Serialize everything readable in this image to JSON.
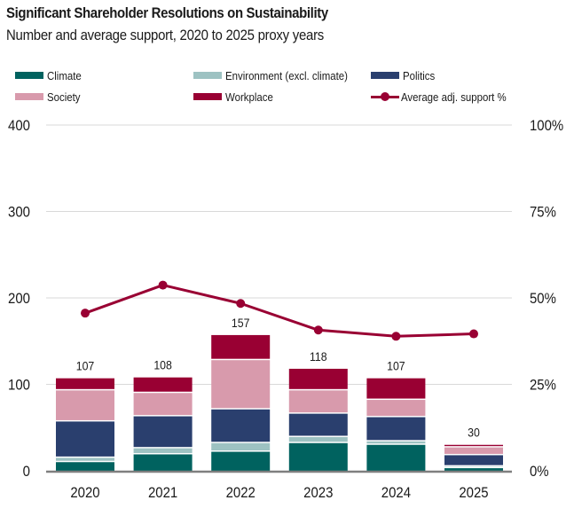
{
  "header": {
    "title": "Significant Shareholder Resolutions on Sustainability",
    "subtitle": "Number and average support, 2020 to 2025 proxy years"
  },
  "colors": {
    "climate": "#00625F",
    "environment": "#9DC2C2",
    "politics": "#2A3F6E",
    "society": "#D89AAC",
    "workplace": "#990033",
    "support_line": "#990033",
    "grid": "#D9D9D9",
    "baseline": "#7F7F7F"
  },
  "legend": [
    {
      "label": "Climate",
      "key": "climate",
      "kind": "bar"
    },
    {
      "label": "Environment (excl. climate)",
      "key": "environment",
      "kind": "bar"
    },
    {
      "label": "Politics",
      "key": "politics",
      "kind": "bar"
    },
    {
      "label": "Society",
      "key": "society",
      "kind": "bar"
    },
    {
      "label": "Workplace",
      "key": "workplace",
      "kind": "bar"
    },
    {
      "label": "Average adj. support %",
      "key": "support_line",
      "kind": "line"
    }
  ],
  "chart_data": {
    "type": "bar",
    "stacked": true,
    "title": "Significant Shareholder Resolutions on Sustainability",
    "subtitle": "Number and average support, 2020 to 2025 proxy years",
    "xlabel": "",
    "ylabel": "",
    "categories": [
      "2020",
      "2021",
      "2022",
      "2023",
      "2024",
      "2025"
    ],
    "series": [
      {
        "name": "Climate",
        "key": "climate",
        "values": [
          10,
          19,
          22,
          32,
          30,
          3
        ]
      },
      {
        "name": "Environment (excl. climate)",
        "key": "environment",
        "values": [
          5,
          7,
          10,
          7,
          4,
          2
        ]
      },
      {
        "name": "Politics",
        "key": "politics",
        "values": [
          42,
          37,
          39,
          27,
          28,
          13
        ]
      },
      {
        "name": "Society",
        "key": "society",
        "values": [
          36,
          27,
          57,
          27,
          20,
          9
        ]
      },
      {
        "name": "Workplace",
        "key": "workplace",
        "values": [
          14,
          18,
          29,
          25,
          25,
          3
        ]
      }
    ],
    "totals": [
      107,
      108,
      157,
      118,
      107,
      30
    ],
    "total_labels": [
      "107",
      "108",
      "157",
      "118",
      "107",
      "30"
    ],
    "line_series": {
      "name": "Average adj. support %",
      "type": "line",
      "axis": "right",
      "values": [
        45.6,
        53.7,
        48.4,
        40.7,
        38.9,
        39.6
      ]
    },
    "ylim": [
      0,
      400
    ],
    "yticks": [
      0,
      100,
      200,
      300,
      400
    ],
    "ytick_labels": [
      "0",
      "100",
      "200",
      "300",
      "400"
    ],
    "y2lim": [
      0,
      100
    ],
    "y2ticks": [
      0,
      25,
      50,
      75,
      100
    ],
    "y2tick_labels": [
      "0%",
      "25%",
      "50%",
      "75%",
      "100%"
    ],
    "grid": true,
    "legend_position": "top"
  }
}
